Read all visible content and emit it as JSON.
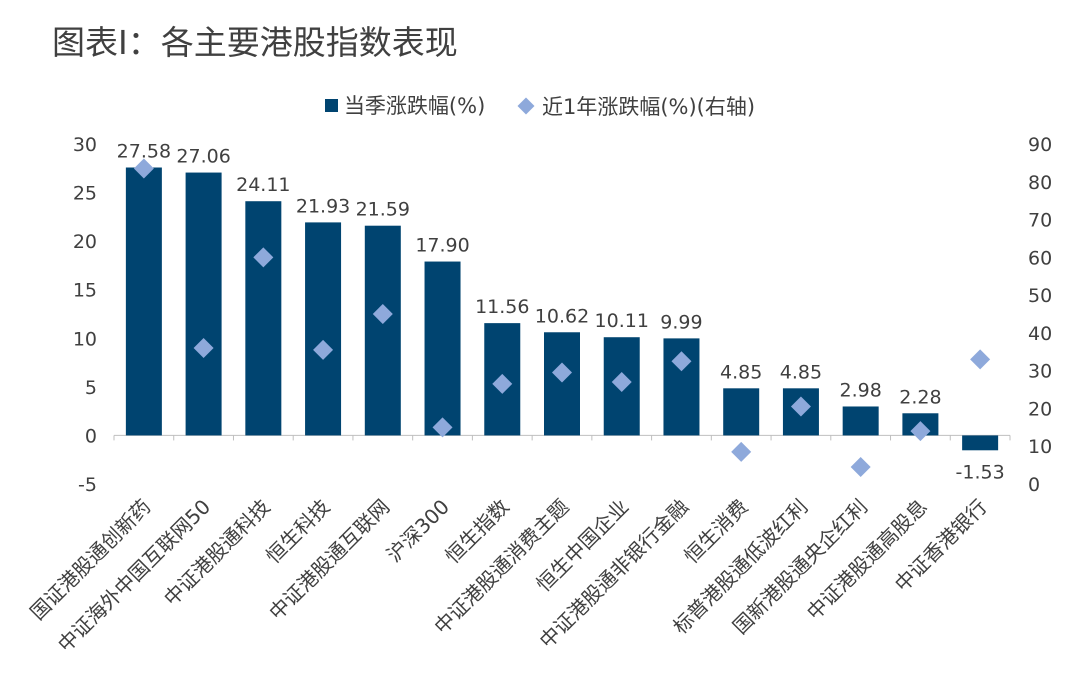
{
  "title": "图表Ⅰ：各主要港股指数表现",
  "legend": {
    "bar_label": "当季涨跌幅(%)",
    "marker_label": "近1年涨跌幅(%)(右轴)"
  },
  "colors": {
    "bar": "#004470",
    "marker": "#8EA9DB",
    "text": "#404040"
  },
  "chart_data": {
    "type": "bar",
    "title": "图表Ⅰ：各主要港股指数表现",
    "categories": [
      "国证港股通创新药",
      "中证海外中国互联网50",
      "中证港股通科技",
      "恒生科技",
      "中证港股通互联网",
      "沪深300",
      "恒生指数",
      "中证港股通消费主题",
      "恒生中国企业",
      "中证港股通非银行金融",
      "恒生消费",
      "标普港股通低波红利",
      "国新港股通央企红利",
      "中证港股通高股息",
      "中证香港银行"
    ],
    "series": [
      {
        "name": "当季涨跌幅(%)",
        "type": "bar",
        "axis": "left",
        "values": [
          27.58,
          27.06,
          24.11,
          21.93,
          21.59,
          17.9,
          11.56,
          10.62,
          10.11,
          9.99,
          4.85,
          4.85,
          2.98,
          2.28,
          -1.53
        ],
        "labels": [
          "27.58",
          "27.06",
          "24.11",
          "21.93",
          "21.59",
          "17.90",
          "11.56",
          "10.62",
          "10.11",
          "9.99",
          "4.85",
          "4.85",
          "2.98",
          "2.28",
          "-1.53"
        ]
      },
      {
        "name": "近1年涨跌幅(%)(右轴)",
        "type": "scatter",
        "axis": "right",
        "values": [
          83.5,
          36,
          60,
          35.5,
          45,
          15,
          26.5,
          29.5,
          27,
          32.5,
          8.5,
          20.5,
          4.5,
          14,
          33
        ]
      }
    ],
    "y_left": {
      "min": -5,
      "max": 30,
      "ticks": [
        "30",
        "25",
        "20",
        "15",
        "10",
        "5",
        "0",
        "-5"
      ]
    },
    "y_right": {
      "min": 0,
      "max": 90,
      "ticks": [
        "90",
        "80",
        "70",
        "60",
        "50",
        "40",
        "30",
        "20",
        "10",
        "0"
      ]
    },
    "legend_position": "top-center"
  }
}
